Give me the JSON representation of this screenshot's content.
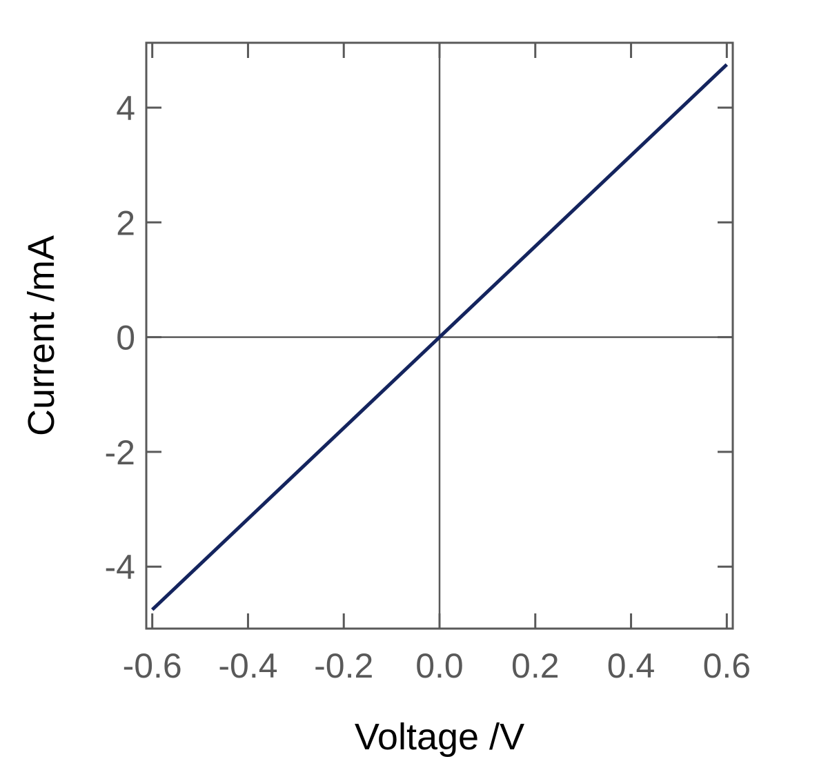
{
  "chart_data": {
    "type": "line",
    "xlabel": "Voltage /V",
    "ylabel": "Current /mA",
    "xlim": [
      -0.6125,
      0.6125
    ],
    "ylim": [
      -5.08,
      5.13
    ],
    "xticks": [
      -0.6,
      -0.4,
      -0.2,
      0.0,
      0.2,
      0.4,
      0.6
    ],
    "xtick_labels": [
      "-0.6",
      "-0.4",
      "-0.2",
      "0.0",
      "0.2",
      "0.4",
      "0.6"
    ],
    "yticks": [
      -4,
      -2,
      0,
      2,
      4
    ],
    "ytick_labels": [
      "-4",
      "-2",
      "0",
      "2",
      "4"
    ],
    "zero_lines": true,
    "grid": false,
    "series": [
      {
        "color": "#14245e",
        "x": [
          -0.6,
          0.6
        ],
        "y": [
          -4.75,
          4.75
        ]
      }
    ]
  }
}
